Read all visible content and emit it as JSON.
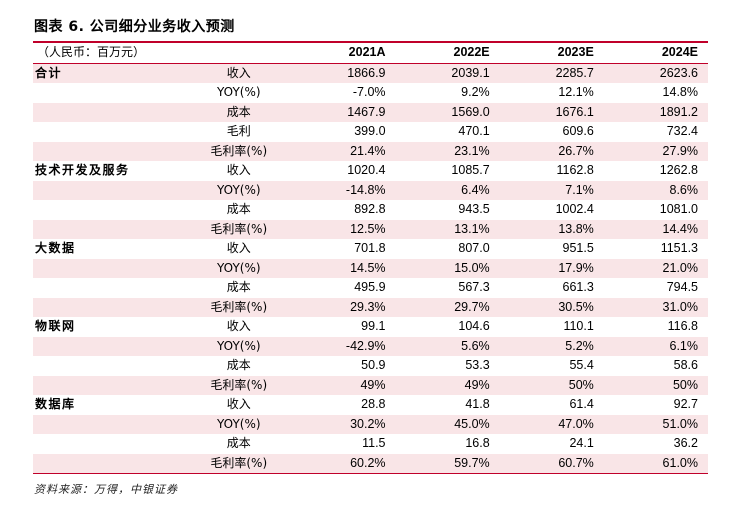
{
  "title": "图表 6. 公司细分业务收入预测",
  "header": {
    "unit": "（人民币：百万元）",
    "years": [
      "2021A",
      "2022E",
      "2023E",
      "2024E"
    ]
  },
  "rows": [
    {
      "segment": "合计",
      "metric": "收入",
      "values": [
        "1866.9",
        "2039.1",
        "2285.7",
        "2623.6"
      ]
    },
    {
      "segment": "",
      "metric": "YOY(%)",
      "values": [
        "-7.0%",
        "9.2%",
        "12.1%",
        "14.8%"
      ]
    },
    {
      "segment": "",
      "metric": "成本",
      "values": [
        "1467.9",
        "1569.0",
        "1676.1",
        "1891.2"
      ]
    },
    {
      "segment": "",
      "metric": "毛利",
      "values": [
        "399.0",
        "470.1",
        "609.6",
        "732.4"
      ]
    },
    {
      "segment": "",
      "metric": "毛利率(%)",
      "values": [
        "21.4%",
        "23.1%",
        "26.7%",
        "27.9%"
      ]
    },
    {
      "segment": "技术开发及服务",
      "metric": "收入",
      "values": [
        "1020.4",
        "1085.7",
        "1162.8",
        "1262.8"
      ]
    },
    {
      "segment": "",
      "metric": "YOY(%)",
      "values": [
        "-14.8%",
        "6.4%",
        "7.1%",
        "8.6%"
      ]
    },
    {
      "segment": "",
      "metric": "成本",
      "values": [
        "892.8",
        "943.5",
        "1002.4",
        "1081.0"
      ]
    },
    {
      "segment": "",
      "metric": "毛利率(%)",
      "values": [
        "12.5%",
        "13.1%",
        "13.8%",
        "14.4%"
      ]
    },
    {
      "segment": "大数据",
      "metric": "收入",
      "values": [
        "701.8",
        "807.0",
        "951.5",
        "1151.3"
      ]
    },
    {
      "segment": "",
      "metric": "YOY(%)",
      "values": [
        "14.5%",
        "15.0%",
        "17.9%",
        "21.0%"
      ]
    },
    {
      "segment": "",
      "metric": "成本",
      "values": [
        "495.9",
        "567.3",
        "661.3",
        "794.5"
      ]
    },
    {
      "segment": "",
      "metric": "毛利率(%)",
      "values": [
        "29.3%",
        "29.7%",
        "30.5%",
        "31.0%"
      ]
    },
    {
      "segment": "物联网",
      "metric": "收入",
      "values": [
        "99.1",
        "104.6",
        "110.1",
        "116.8"
      ]
    },
    {
      "segment": "",
      "metric": "YOY(%)",
      "values": [
        "-42.9%",
        "5.6%",
        "5.2%",
        "6.1%"
      ]
    },
    {
      "segment": "",
      "metric": "成本",
      "values": [
        "50.9",
        "53.3",
        "55.4",
        "58.6"
      ]
    },
    {
      "segment": "",
      "metric": "毛利率(%)",
      "values": [
        "49%",
        "49%",
        "50%",
        "50%"
      ]
    },
    {
      "segment": "数据库",
      "metric": "收入",
      "values": [
        "28.8",
        "41.8",
        "61.4",
        "92.7"
      ]
    },
    {
      "segment": "",
      "metric": "YOY(%)",
      "values": [
        "30.2%",
        "45.0%",
        "47.0%",
        "51.0%"
      ]
    },
    {
      "segment": "",
      "metric": "成本",
      "values": [
        "11.5",
        "16.8",
        "24.1",
        "36.2"
      ]
    },
    {
      "segment": "",
      "metric": "毛利率(%)",
      "values": [
        "60.2%",
        "59.7%",
        "60.7%",
        "61.0%"
      ]
    }
  ],
  "source": "资料来源：万得，中银证券",
  "colors": {
    "accent": "#c0002a",
    "stripe": "#f9e5e7"
  }
}
